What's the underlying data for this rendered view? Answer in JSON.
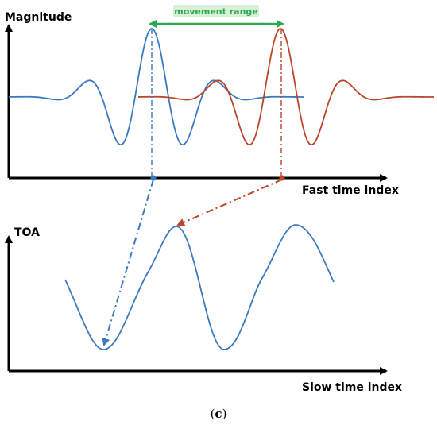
{
  "top_panel": {
    "y_axis_label": "Magnitude",
    "x_axis_label": "Fast time index",
    "range_label": "movement range"
  },
  "bottom_panel": {
    "y_axis_label": "TOA",
    "x_axis_label": "Slow time index"
  },
  "caption": {
    "open": "(",
    "letter": "c",
    "close": ")"
  },
  "colors": {
    "blue_wave": "#3a78c0",
    "red_wave": "#b9452b",
    "range_arrow": "#2ea84e",
    "range_label_bg": "#d8f0d8",
    "axis": "#000000"
  }
}
